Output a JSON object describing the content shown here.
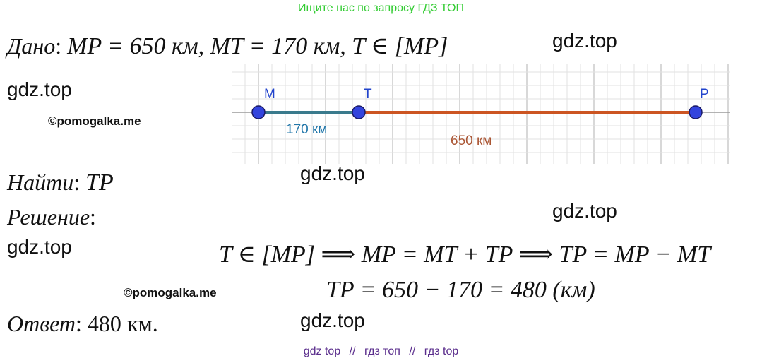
{
  "header_note": "Ищите нас по запросу ГДЗ ТОП",
  "watermarks": {
    "gdz": "gdz.top",
    "pomogalka": "©pomogalka.me"
  },
  "given": {
    "label": "Дано",
    "condition": "MP = 650 км,  MT = 170 км,  T ∈ [MP]"
  },
  "find": {
    "label": "Найти",
    "value": "TP"
  },
  "solution": {
    "label": "Решение",
    "line1": "T ∈ [MP] ⟹ MP = MT + TP ⟹ TP = MP − MT",
    "line2": "TP = 650 − 170 = 480 (км)"
  },
  "answer": {
    "label": "Ответ",
    "value": "480 км."
  },
  "diagram": {
    "points": [
      "M",
      "T",
      "P"
    ],
    "segment_mt_label": "170 км",
    "segment_mp_label": "650 км",
    "colors": {
      "point_fill": "#3344dd",
      "mt_segment": "#3a7a8c",
      "tp_segment": "#cc5522",
      "mt_label": "#2277aa",
      "mp_label": "#aa5533",
      "grid": "#e2e2e2",
      "grid_major": "#bdbdbd"
    }
  },
  "footer_links": [
    "gdz top",
    "гдз топ",
    "гдз top"
  ],
  "footer_separator": "//"
}
